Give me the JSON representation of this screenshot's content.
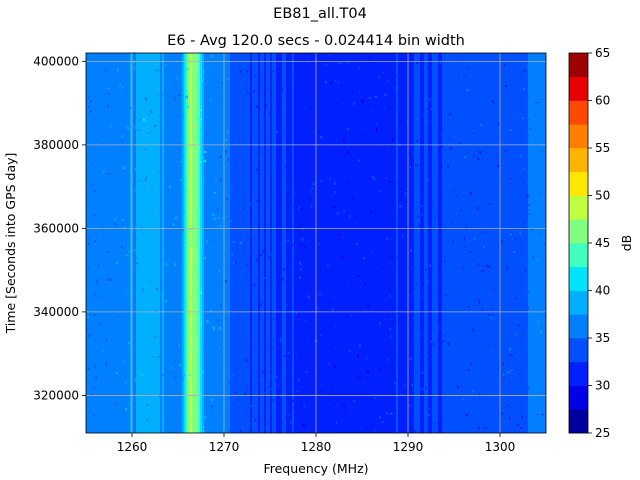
{
  "chart_data": {
    "type": "heatmap",
    "title": "EB81_all.T04",
    "subtitle": "E6 - Avg 120.0 secs - 0.024414 bin width",
    "xlabel": "Frequency (MHz)",
    "ylabel": "Time [Seconds into GPS day]",
    "xlim": [
      1255,
      1305
    ],
    "ylim": [
      311000,
      402000
    ],
    "x_ticks": [
      1260,
      1270,
      1280,
      1290,
      1300
    ],
    "x_tick_labels": [
      "1260",
      "1270",
      "1280",
      "1290",
      "1300"
    ],
    "y_ticks": [
      320000,
      340000,
      360000,
      380000,
      400000
    ],
    "y_tick_labels": [
      "320000",
      "340000",
      "360000",
      "380000",
      "400000"
    ],
    "grid": true,
    "colorbar": {
      "label": "dB",
      "range": [
        25,
        65
      ],
      "ticks": [
        25,
        30,
        35,
        40,
        45,
        50,
        55,
        60,
        65
      ],
      "tick_labels": [
        "25",
        "30",
        "35",
        "40",
        "45",
        "50",
        "55",
        "60",
        "65"
      ],
      "levels": [
        25,
        27.5,
        30,
        32.5,
        35,
        37.5,
        40,
        42.5,
        45,
        47.5,
        50,
        52.5,
        55,
        57.5,
        60,
        62.5,
        65
      ],
      "colors": [
        "#00009f",
        "#0000e8",
        "#0020ff",
        "#0050ff",
        "#0080ff",
        "#00b0ff",
        "#00e4ff",
        "#40ffbf",
        "#80ff80",
        "#bfff40",
        "#ffe800",
        "#ffb400",
        "#ff8000",
        "#ff4800",
        "#e80000",
        "#9f0000"
      ]
    },
    "frequency_profile_db": [
      {
        "freq_mhz": 1255.0,
        "db": 35.5
      },
      {
        "freq_mhz": 1257.8,
        "db": 35.5
      },
      {
        "freq_mhz": 1258.5,
        "db": 36.5
      },
      {
        "freq_mhz": 1261.5,
        "db": 38.5
      },
      {
        "freq_mhz": 1264.5,
        "db": 36.5
      },
      {
        "freq_mhz": 1265.5,
        "db": 37.5
      },
      {
        "freq_mhz": 1266.4,
        "db": 48.0
      },
      {
        "freq_mhz": 1267.2,
        "db": 45.0
      },
      {
        "freq_mhz": 1268.0,
        "db": 37.0
      },
      {
        "freq_mhz": 1270.5,
        "db": 36.0
      },
      {
        "freq_mhz": 1271.2,
        "db": 33.0
      },
      {
        "freq_mhz": 1283.0,
        "db": 31.5
      },
      {
        "freq_mhz": 1300.0,
        "db": 33.5
      },
      {
        "freq_mhz": 1302.8,
        "db": 33.5
      },
      {
        "freq_mhz": 1303.4,
        "db": 35.5
      },
      {
        "freq_mhz": 1305.0,
        "db": 35.5
      }
    ]
  }
}
